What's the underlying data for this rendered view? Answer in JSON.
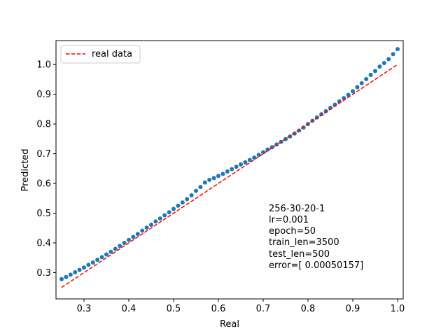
{
  "chart_data": {
    "type": "scatter",
    "xlabel": "Real",
    "ylabel": "Predicted",
    "xlim": [
      0.2375,
      1.0125
    ],
    "ylim": [
      0.2115,
      1.0805
    ],
    "x_ticks": [
      "0.3",
      "0.4",
      "0.5",
      "0.6",
      "0.7",
      "0.8",
      "0.9",
      "1.0"
    ],
    "y_ticks": [
      "0.3",
      "0.4",
      "0.5",
      "0.6",
      "0.7",
      "0.8",
      "0.9",
      "1.0"
    ],
    "grid": false,
    "legend": {
      "position": "top-left",
      "entries": [
        "real data"
      ]
    },
    "colors": {
      "scatter": "#1f77b4",
      "line": "#ff0000"
    },
    "reference_line": {
      "name": "real data",
      "style": "dashed",
      "x": [
        0.25,
        1.0
      ],
      "y": [
        0.25,
        1.0
      ]
    },
    "scatter_points": [
      [
        0.25,
        0.278
      ],
      [
        0.26,
        0.285
      ],
      [
        0.27,
        0.293
      ],
      [
        0.28,
        0.301
      ],
      [
        0.29,
        0.309
      ],
      [
        0.3,
        0.317
      ],
      [
        0.31,
        0.326
      ],
      [
        0.32,
        0.334
      ],
      [
        0.33,
        0.343
      ],
      [
        0.34,
        0.352
      ],
      [
        0.35,
        0.361
      ],
      [
        0.36,
        0.37
      ],
      [
        0.37,
        0.38
      ],
      [
        0.38,
        0.39
      ],
      [
        0.39,
        0.4
      ],
      [
        0.4,
        0.41
      ],
      [
        0.41,
        0.42
      ],
      [
        0.42,
        0.43
      ],
      [
        0.43,
        0.441
      ],
      [
        0.44,
        0.451
      ],
      [
        0.45,
        0.461
      ],
      [
        0.46,
        0.472
      ],
      [
        0.47,
        0.482
      ],
      [
        0.48,
        0.493
      ],
      [
        0.49,
        0.503
      ],
      [
        0.5,
        0.514
      ],
      [
        0.51,
        0.525
      ],
      [
        0.52,
        0.536
      ],
      [
        0.53,
        0.547
      ],
      [
        0.54,
        0.56
      ],
      [
        0.55,
        0.575
      ],
      [
        0.56,
        0.588
      ],
      [
        0.57,
        0.603
      ],
      [
        0.58,
        0.612
      ],
      [
        0.59,
        0.618
      ],
      [
        0.6,
        0.625
      ],
      [
        0.61,
        0.632
      ],
      [
        0.62,
        0.64
      ],
      [
        0.63,
        0.648
      ],
      [
        0.64,
        0.656
      ],
      [
        0.65,
        0.664
      ],
      [
        0.66,
        0.671
      ],
      [
        0.67,
        0.679
      ],
      [
        0.68,
        0.687
      ],
      [
        0.69,
        0.696
      ],
      [
        0.7,
        0.705
      ],
      [
        0.71,
        0.714
      ],
      [
        0.72,
        0.722
      ],
      [
        0.73,
        0.731
      ],
      [
        0.74,
        0.74
      ],
      [
        0.75,
        0.749
      ],
      [
        0.76,
        0.758
      ],
      [
        0.77,
        0.768
      ],
      [
        0.78,
        0.778
      ],
      [
        0.79,
        0.788
      ],
      [
        0.8,
        0.8
      ],
      [
        0.81,
        0.811
      ],
      [
        0.82,
        0.822
      ],
      [
        0.83,
        0.833
      ],
      [
        0.84,
        0.843
      ],
      [
        0.85,
        0.854
      ],
      [
        0.86,
        0.865
      ],
      [
        0.87,
        0.876
      ],
      [
        0.88,
        0.887
      ],
      [
        0.89,
        0.898
      ],
      [
        0.9,
        0.91
      ],
      [
        0.91,
        0.924
      ],
      [
        0.92,
        0.937
      ],
      [
        0.93,
        0.951
      ],
      [
        0.94,
        0.965
      ],
      [
        0.95,
        0.978
      ],
      [
        0.96,
        0.993
      ],
      [
        0.97,
        1.005
      ],
      [
        0.98,
        1.018
      ],
      [
        0.99,
        1.035
      ],
      [
        1.0,
        1.052
      ]
    ],
    "annotation": {
      "lines": [
        "256-30-20-1",
        "lr=0.001",
        "epoch=50",
        "train_len=3500",
        "test_len=500",
        "error=[ 0.00050157]"
      ]
    }
  }
}
